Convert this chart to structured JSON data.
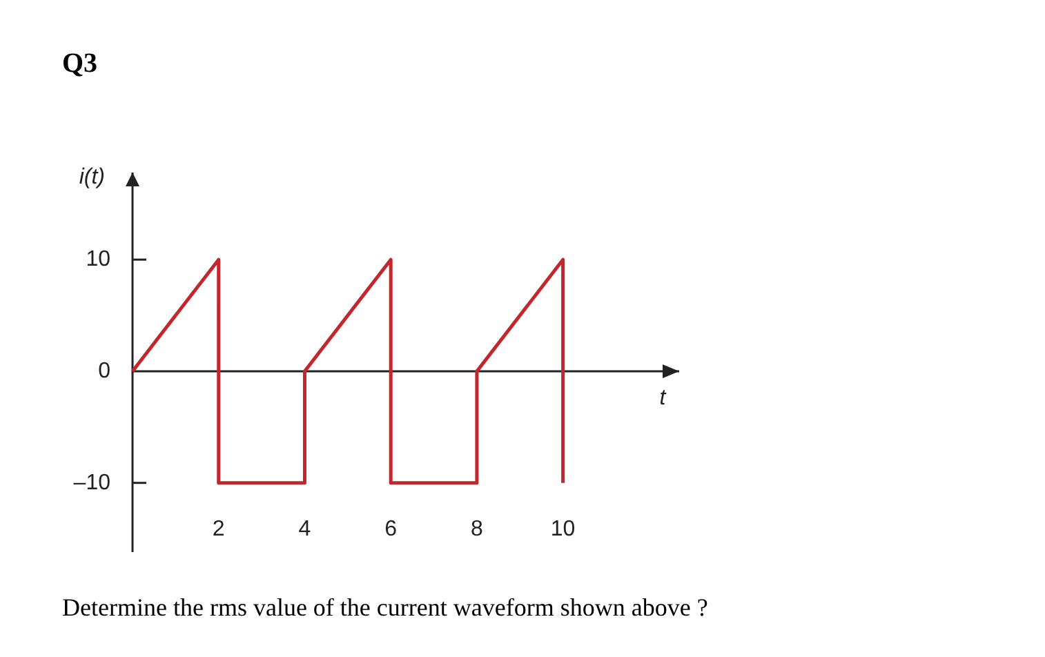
{
  "chart_data": {
    "type": "line",
    "title": "Q3",
    "xlabel": "t",
    "ylabel": "i(t)",
    "x": [
      0,
      2,
      2,
      4,
      4,
      6,
      6,
      8,
      8,
      10,
      10
    ],
    "series": [
      {
        "color": "#c1272d",
        "values": [
          0,
          10,
          -10,
          -10,
          0,
          10,
          -10,
          -10,
          0,
          10,
          -10
        ]
      }
    ],
    "xlim": [
      0,
      12.7
    ],
    "ylim": [
      -16.2,
      17.8
    ],
    "xticks": [
      2,
      4,
      6,
      8,
      10
    ],
    "yticks": [
      {
        "value": -10,
        "label": "–10"
      },
      0,
      10
    ],
    "annotations": [
      "Determine the rms value of the current waveform shown above ?"
    ]
  }
}
